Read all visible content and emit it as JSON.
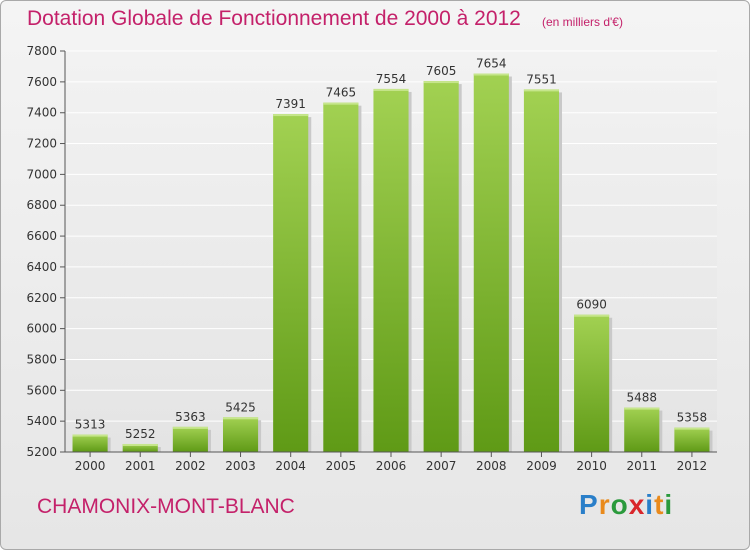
{
  "header": {
    "title": "Dotation Globale de Fonctionnement de 2000 à 2012",
    "subtitle": "(en milliers d'€)"
  },
  "footer": {
    "commune": "CHAMONIX-MONT-BLANC",
    "logo": {
      "letters": [
        "P",
        "r",
        "o",
        "x",
        "i",
        "t",
        "i"
      ],
      "colors": [
        "#2a7fc9",
        "#e98a1c",
        "#2a9a3c",
        "#d9262b",
        "#2a7fc9",
        "#e98a1c",
        "#2a9a3c"
      ]
    }
  },
  "chart_data": {
    "type": "bar",
    "categories": [
      "2000",
      "2001",
      "2002",
      "2003",
      "2004",
      "2005",
      "2006",
      "2007",
      "2008",
      "2009",
      "2010",
      "2011",
      "2012"
    ],
    "values": [
      5313,
      5252,
      5363,
      5425,
      7391,
      7465,
      7554,
      7605,
      7654,
      7551,
      6090,
      5488,
      5358
    ],
    "ylim": [
      5200,
      7800
    ],
    "yticks": [
      5200,
      5400,
      5600,
      5800,
      6000,
      6200,
      6400,
      6600,
      6800,
      7000,
      7200,
      7400,
      7600,
      7800
    ],
    "grid": true,
    "bar_color_light": "#a2d152",
    "bar_color_dark": "#5f9a16"
  }
}
